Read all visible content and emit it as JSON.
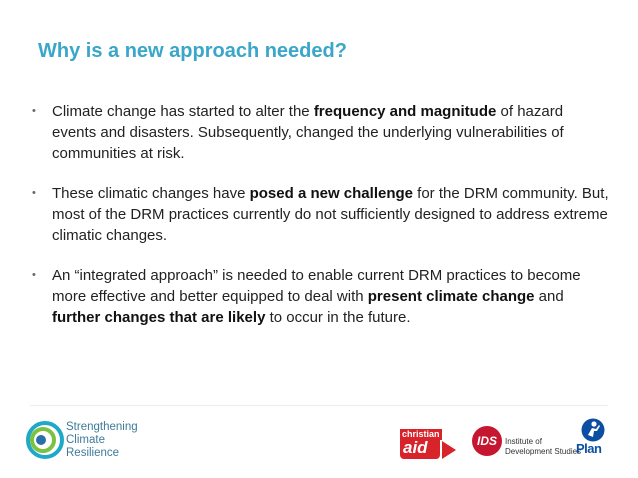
{
  "slide": {
    "title": "Why is a new approach needed?",
    "bullets": [
      {
        "segments": [
          {
            "text": "Climate change has started to alter the ",
            "bold": false
          },
          {
            "text": "frequency and magnitude",
            "bold": true
          },
          {
            "text": " of hazard events and disasters. Subsequently, changed the underlying vulnerabilities of communities at risk.",
            "bold": false
          }
        ]
      },
      {
        "segments": [
          {
            "text": "These climatic changes have ",
            "bold": false
          },
          {
            "text": "posed a new challenge",
            "bold": true
          },
          {
            "text": " for the DRM community. But, most of the DRM practices currently do not sufficiently designed to address extreme climatic changes.",
            "bold": false
          }
        ]
      },
      {
        "segments": [
          {
            "text": "An “integrated approach” is needed to enable current DRM practices to become more effective and better equipped to deal with ",
            "bold": false
          },
          {
            "text": "present climate change",
            "bold": true
          },
          {
            "text": " and ",
            "bold": false
          },
          {
            "text": "further changes that are likely",
            "bold": true
          },
          {
            "text": " to occur in the future.",
            "bold": false
          }
        ]
      }
    ],
    "bullet_marker": "•"
  },
  "footer": {
    "scr_logo": {
      "lines": [
        "Strengthening",
        "Climate",
        "Resilience"
      ],
      "icon": "concentric-rings-icon"
    },
    "christian_aid_logo": {
      "top": "christian",
      "main": "aid",
      "color": "#d8232a"
    },
    "ids_logo": {
      "mark": "IDS",
      "lines": [
        "Institute of",
        "Development Studies"
      ],
      "color": "#c5172f"
    },
    "plan_logo": {
      "word": "Plan",
      "icon": "plan-figure-icon",
      "color": "#0b4ea2"
    }
  },
  "colors": {
    "title": "#3aa6c9",
    "body_text": "#222222"
  }
}
